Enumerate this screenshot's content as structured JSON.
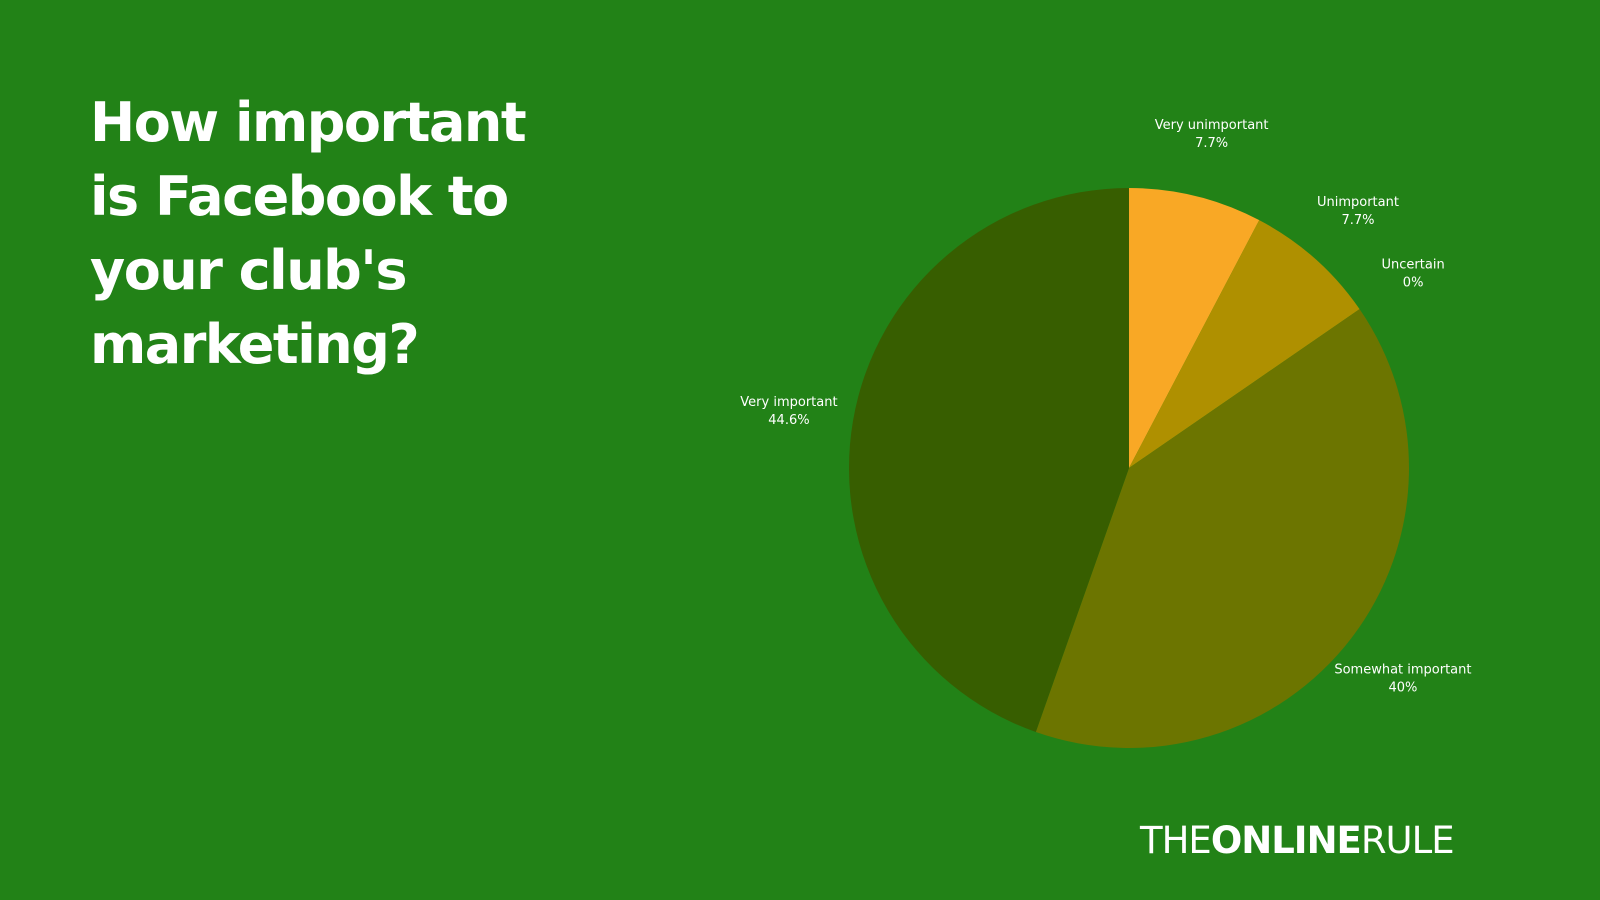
{
  "title_lines": [
    "How important",
    "is Facebook to",
    "your club's",
    "marketing?"
  ],
  "chart_data": {
    "type": "pie",
    "title": "How important is Facebook to your club's marketing?",
    "slices": [
      {
        "label": "Very unimportant",
        "value_label": "7.7%",
        "value": 7.7,
        "color": "#F9A825"
      },
      {
        "label": "Unimportant",
        "value_label": "7.7%",
        "value": 7.7,
        "color": "#AF9000"
      },
      {
        "label": "Uncertain",
        "value_label": "0%",
        "value": 0,
        "color": "#8F8500"
      },
      {
        "label": "Somewhat important",
        "value_label": "40%",
        "value": 40,
        "color": "#6C7500"
      },
      {
        "label": "Very important",
        "value_label": "44.6%",
        "value": 44.6,
        "color": "#375E00"
      }
    ],
    "start_angle_deg": 0,
    "direction": "clockwise"
  },
  "brand": {
    "part1": "THE",
    "part2": "ONLINE",
    "part3": "RULE"
  }
}
